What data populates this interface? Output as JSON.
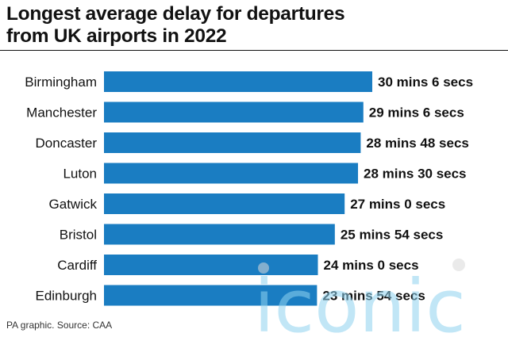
{
  "title_line1": "Longest average delay for departures",
  "title_line2": "from UK airports in 2022",
  "source": "PA graphic. Source: CAA",
  "watermark": "iconic",
  "colors": {
    "bar": "#1a7dc2",
    "text": "#111111",
    "watermark": "#8fd3f0",
    "watermark_dot": "#d9d9d9"
  },
  "chart_data": {
    "type": "bar",
    "orientation": "horizontal",
    "categories": [
      "Birmingham",
      "Manchester",
      "Doncaster",
      "Luton",
      "Gatwick",
      "Bristol",
      "Cardiff",
      "Edinburgh"
    ],
    "values": [
      30.1,
      29.1,
      28.8,
      28.5,
      27.0,
      25.9,
      24.0,
      23.9
    ],
    "value_labels": [
      "30 mins 6 secs",
      "29 mins 6 secs",
      "28 mins 48 secs",
      "28 mins 30 secs",
      "27 mins 0 secs",
      "25 mins 54 secs",
      "24 mins 0 secs",
      "23 mins 54 secs"
    ],
    "unit": "minutes",
    "xlim": [
      0,
      30.1
    ],
    "grid": false,
    "legend": "none"
  }
}
